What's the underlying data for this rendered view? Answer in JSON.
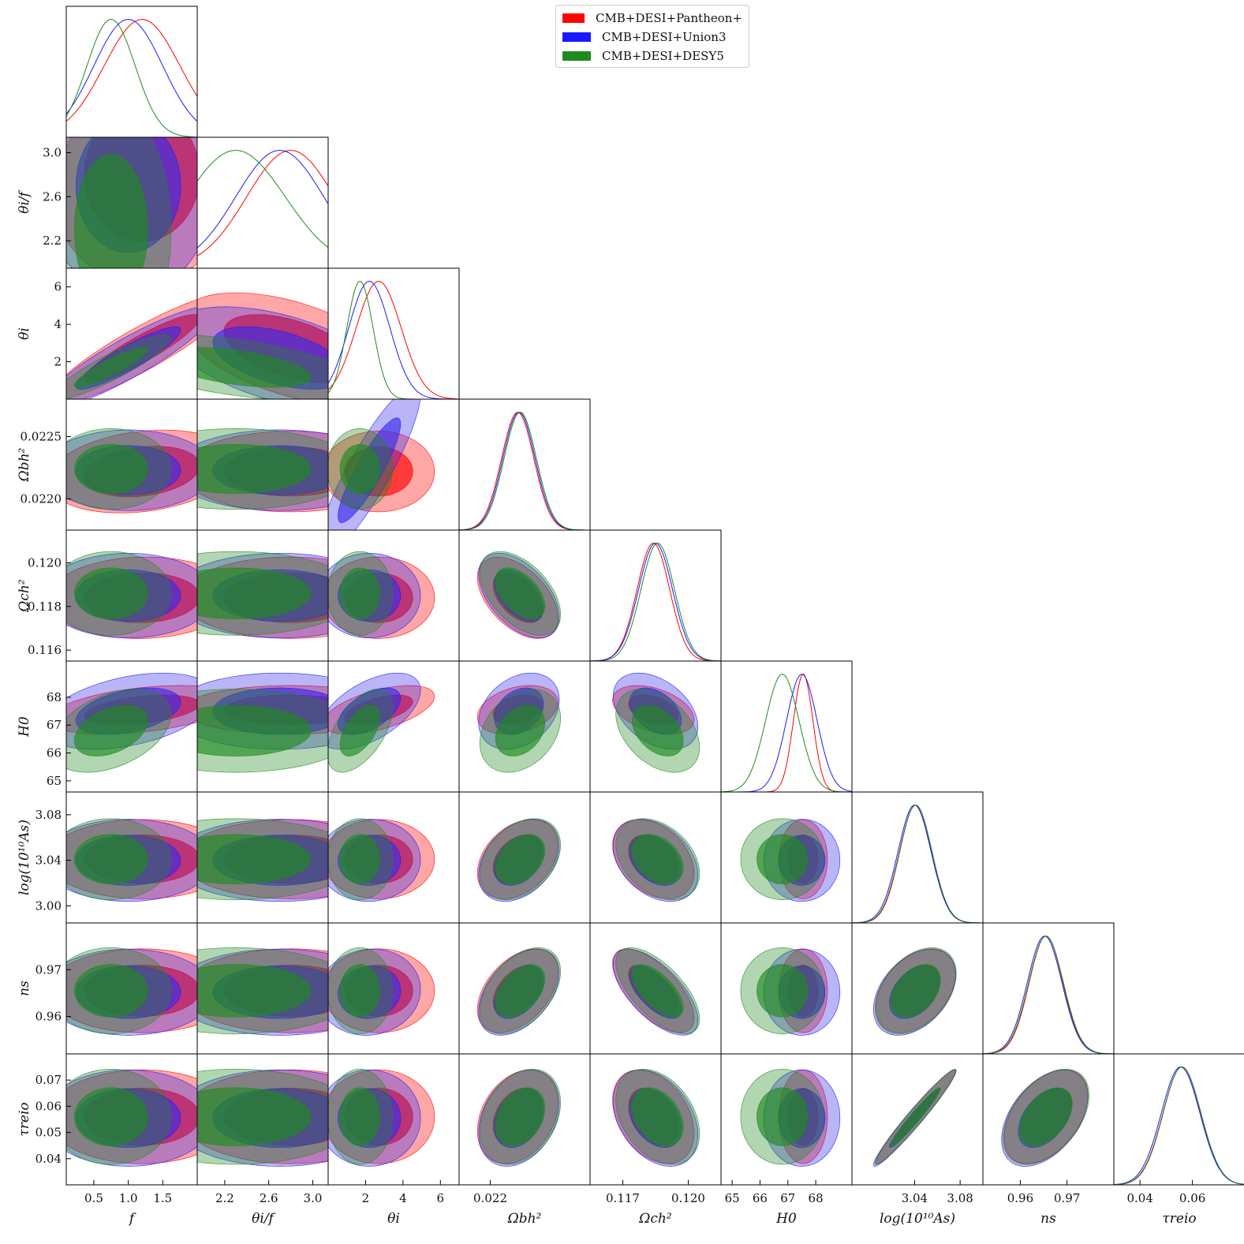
{
  "legend": {
    "entries": [
      {
        "label": "CMB+DESI+Pantheon+",
        "color": "#ff0000"
      },
      {
        "label": "CMB+DESI+Union3",
        "color": "#1a1aff"
      },
      {
        "label": "CMB+DESI+DESY5",
        "color": "#1f8a1f"
      }
    ],
    "placement": "top-right"
  },
  "chart_data": {
    "type": "corner",
    "parameters": [
      {
        "key": "f",
        "label": "f",
        "range": [
          0.1,
          2.0
        ],
        "ticks": [
          "0.5",
          "1.0",
          "1.5"
        ],
        "tick_values": [
          0.5,
          1.0,
          1.5
        ]
      },
      {
        "key": "theta_f",
        "label": "θi/f",
        "range": [
          1.95,
          3.14
        ],
        "ticks": [
          "2.2",
          "2.6",
          "3.0"
        ],
        "tick_values": [
          2.2,
          2.6,
          3.0
        ]
      },
      {
        "key": "theta_i",
        "label": "θi",
        "range": [
          0.0,
          7.0
        ],
        "ticks": [
          "2",
          "4",
          "6"
        ],
        "tick_values": [
          2,
          4,
          6
        ]
      },
      {
        "key": "omega_b",
        "label": "Ωbh²",
        "range": [
          0.02175,
          0.0228
        ],
        "ticks": [
          "0.022"
        ],
        "tick_values": [
          0.022
        ],
        "y_ticks": [
          "0.0220",
          "0.0225"
        ],
        "y_tick_values": [
          0.022,
          0.0225
        ]
      },
      {
        "key": "omega_c",
        "label": "Ωch²",
        "range": [
          0.1155,
          0.1215
        ],
        "ticks": [
          "0.117",
          "0.120"
        ],
        "tick_values": [
          0.117,
          0.12
        ],
        "y_ticks": [
          "0.116",
          "0.118",
          "0.120"
        ],
        "y_tick_values": [
          0.116,
          0.118,
          0.12
        ]
      },
      {
        "key": "H0",
        "label": "H0",
        "range": [
          64.6,
          69.3
        ],
        "ticks": [
          "65",
          "66",
          "67",
          "68"
        ],
        "tick_values": [
          65,
          66,
          67,
          68
        ]
      },
      {
        "key": "logA",
        "label": "log(10¹⁰As)",
        "range": [
          2.985,
          3.1
        ],
        "ticks": [
          "3.04",
          "3.08"
        ],
        "tick_values": [
          3.04,
          3.08
        ],
        "y_ticks": [
          "3.00",
          "3.04",
          "3.08"
        ],
        "y_tick_values": [
          3.0,
          3.04,
          3.08
        ]
      },
      {
        "key": "ns",
        "label": "ns",
        "range": [
          0.952,
          0.98
        ],
        "ticks": [
          "0.96",
          "0.97"
        ],
        "tick_values": [
          0.96,
          0.97
        ]
      },
      {
        "key": "tau",
        "label": "τreio",
        "range": [
          0.03,
          0.08
        ],
        "ticks": [
          "0.04",
          "0.06"
        ],
        "tick_values": [
          0.04,
          0.06
        ],
        "y_ticks": [
          "0.04",
          "0.05",
          "0.06",
          "0.07"
        ],
        "y_tick_values": [
          0.04,
          0.05,
          0.06,
          0.07
        ]
      }
    ],
    "series": [
      {
        "name": "CMB+DESI+Pantheon+",
        "color": "#ff0000",
        "fill_color": "#ff0000",
        "mean": {
          "f": 1.2,
          "theta_f": 2.8,
          "theta_i": 2.7,
          "omega_b": 0.02222,
          "omega_c": 0.1184,
          "H0": 67.55,
          "logA": 3.041,
          "ns": 0.9655,
          "tau": 0.056
        },
        "sigma": {
          "f": 0.55,
          "theta_f": 0.4,
          "theta_i": 1.2,
          "omega_b": 0.00013,
          "omega_c": 0.00075,
          "H0": 0.35,
          "logA": 0.014,
          "ns": 0.0036,
          "tau": 0.0072
        }
      },
      {
        "name": "CMB+DESI+Union3",
        "color": "#1a1aff",
        "fill_color": "#3a2be8",
        "mean": {
          "f": 1.0,
          "theta_f": 2.7,
          "theta_i": 2.2,
          "omega_b": 0.02223,
          "omega_c": 0.1185,
          "H0": 67.5,
          "logA": 3.04,
          "ns": 0.9652,
          "tau": 0.0555
        },
        "sigma": {
          "f": 0.5,
          "theta_f": 0.4,
          "theta_i": 1.1,
          "omega_b": 0.00013,
          "omega_c": 0.00078,
          "H0": 0.55,
          "logA": 0.0145,
          "ns": 0.0037,
          "tau": 0.0074
        }
      },
      {
        "name": "CMB+DESI+DESY5",
        "color": "#1f8a1f",
        "fill_color": "#1f8a1f",
        "mean": {
          "f": 0.75,
          "theta_f": 2.3,
          "theta_i": 1.7,
          "omega_b": 0.02224,
          "omega_c": 0.1186,
          "H0": 66.8,
          "logA": 3.041,
          "ns": 0.9655,
          "tau": 0.056
        },
        "sigma": {
          "f": 0.35,
          "theta_f": 0.45,
          "theta_i": 0.7,
          "omega_b": 0.00013,
          "omega_c": 0.00077,
          "H0": 0.6,
          "logA": 0.0143,
          "ns": 0.0037,
          "tau": 0.0073
        }
      }
    ],
    "correlations": {
      "f|theta_i": 0.9,
      "theta_f|theta_i": -0.5,
      "omega_b|omega_c": -0.5,
      "omega_b|H0": 0.3,
      "omega_c|H0": -0.4,
      "omega_b|logA": 0.35,
      "omega_c|logA": -0.35,
      "omega_b|ns": 0.45,
      "omega_c|ns": -0.65,
      "omega_b|tau": 0.3,
      "omega_c|tau": -0.35,
      "logA|ns": 0.4,
      "logA|tau": 0.97,
      "ns|tau": 0.45,
      "H0|theta_i": 0.55,
      "f|H0": 0.4
    },
    "grid": false,
    "legend_placement": "top-right"
  }
}
